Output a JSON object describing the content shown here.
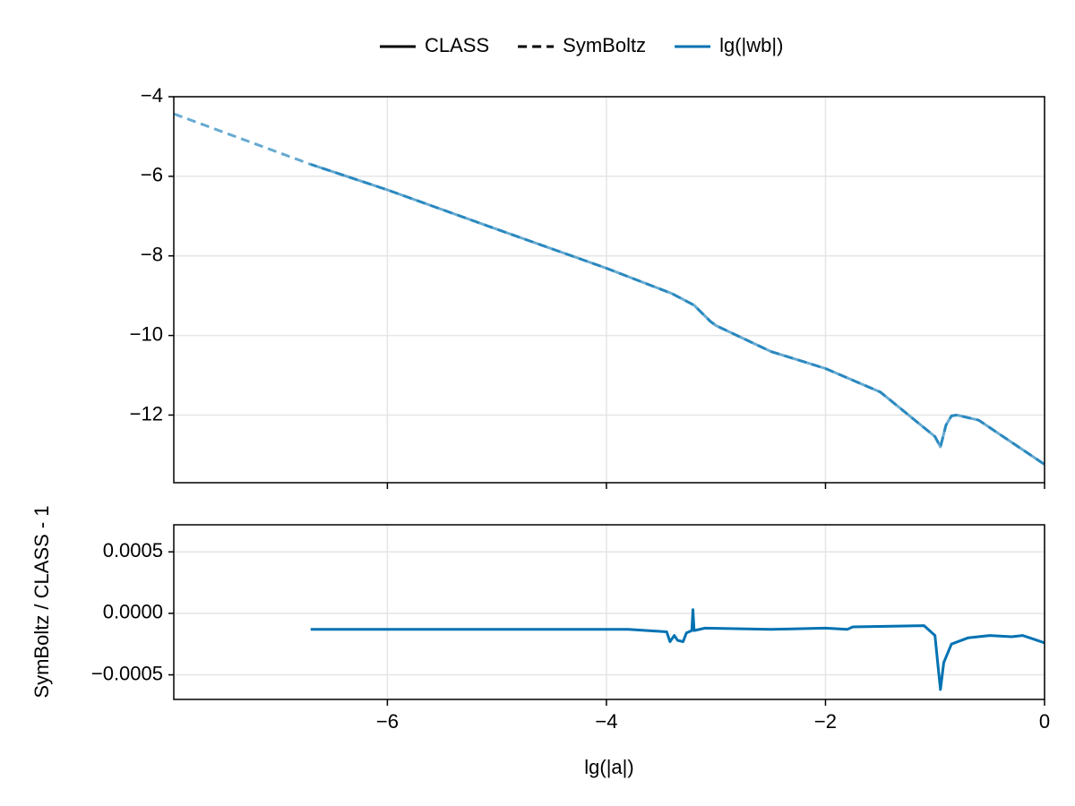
{
  "chart_data": [
    {
      "type": "line",
      "legend": {
        "position": "top"
      },
      "quantity": {
        "name": "lg(|wb|)",
        "color": "#0072b2"
      },
      "series": [
        {
          "name": "CLASS",
          "dash": "solid",
          "color": "#0072b2",
          "x": [
            -6.7,
            -6,
            -5,
            -4,
            -3.4,
            -3.2,
            -3.05,
            -3,
            -2.5,
            -2,
            -1.5,
            -1,
            -0.95,
            -0.9,
            -0.85,
            -0.8,
            -0.6,
            -0.4,
            -0.2,
            0
          ],
          "values": [
            -5.7,
            -6.34,
            -7.33,
            -8.31,
            -8.95,
            -9.24,
            -9.65,
            -9.75,
            -10.4,
            -10.83,
            -11.42,
            -12.54,
            -12.8,
            -12.25,
            -12.02,
            -12.0,
            -12.13,
            -12.5,
            -12.87,
            -13.24
          ]
        },
        {
          "name": "SymBoltz",
          "dash": "dashed",
          "color": "#0072b2",
          "x": [
            -7.95,
            -6.7,
            -6,
            -5,
            -4,
            -3.4,
            -3.2,
            -3.05,
            -3,
            -2.5,
            -2,
            -1.5,
            -1,
            -0.95,
            -0.9,
            -0.85,
            -0.8,
            -0.6,
            -0.4,
            -0.2,
            0
          ],
          "values": [
            -4.43,
            -5.7,
            -6.34,
            -7.33,
            -8.31,
            -8.95,
            -9.24,
            -9.65,
            -9.75,
            -10.4,
            -10.83,
            -11.42,
            -12.54,
            -12.8,
            -12.25,
            -12.02,
            -12.0,
            -12.13,
            -12.5,
            -12.87,
            -13.24
          ]
        }
      ],
      "xlim": [
        -7.95,
        0
      ],
      "xticks": [
        -6,
        -4,
        -2,
        0
      ],
      "ylim": [
        -13.7,
        -4
      ],
      "yticks": [
        {
          "value": -12,
          "label": "−12"
        },
        {
          "value": -10,
          "label": "−10"
        },
        {
          "value": -8,
          "label": "−8"
        },
        {
          "value": -6,
          "label": "−6"
        },
        {
          "value": -4,
          "label": "−4"
        }
      ],
      "grid": true
    },
    {
      "type": "line",
      "x_label": "lg(|a|)",
      "y_label": "SymBoltz / CLASS - 1",
      "series": [
        {
          "color": "#0072b2",
          "x": [
            -6.7,
            -3.8,
            -3.45,
            -3.42,
            -3.38,
            -3.35,
            -3.3,
            -3.27,
            -3.22,
            -3.21,
            -3.2,
            -3.1,
            -2.5,
            -2.0,
            -1.8,
            -1.75,
            -1.1,
            -1.0,
            -0.97,
            -0.95,
            -0.92,
            -0.85,
            -0.7,
            -0.5,
            -0.3,
            -0.2,
            -0.1,
            0
          ],
          "values": [
            -0.00013,
            -0.00013,
            -0.00015,
            -0.00023,
            -0.00018,
            -0.00022,
            -0.00023,
            -0.00016,
            -0.00014,
            3e-05,
            -0.00014,
            -0.00012,
            -0.00013,
            -0.00012,
            -0.00013,
            -0.00011,
            -0.0001,
            -0.00018,
            -0.00045,
            -0.00062,
            -0.0004,
            -0.00025,
            -0.0002,
            -0.00018,
            -0.00019,
            -0.00018,
            -0.00021,
            -0.00024
          ]
        }
      ],
      "xlim": [
        -7.95,
        0
      ],
      "xticks": [
        {
          "value": -6,
          "label": "−6"
        },
        {
          "value": -4,
          "label": "−4"
        },
        {
          "value": -2,
          "label": "−2"
        },
        0
      ],
      "ylim": [
        -0.0007,
        0.00072
      ],
      "yticks": [
        {
          "value": -0.0005,
          "label": "−0.0005"
        },
        {
          "value": 0,
          "label": "0.0000"
        },
        {
          "value": 0.0005,
          "label": "0.0005"
        }
      ],
      "grid": true
    }
  ]
}
